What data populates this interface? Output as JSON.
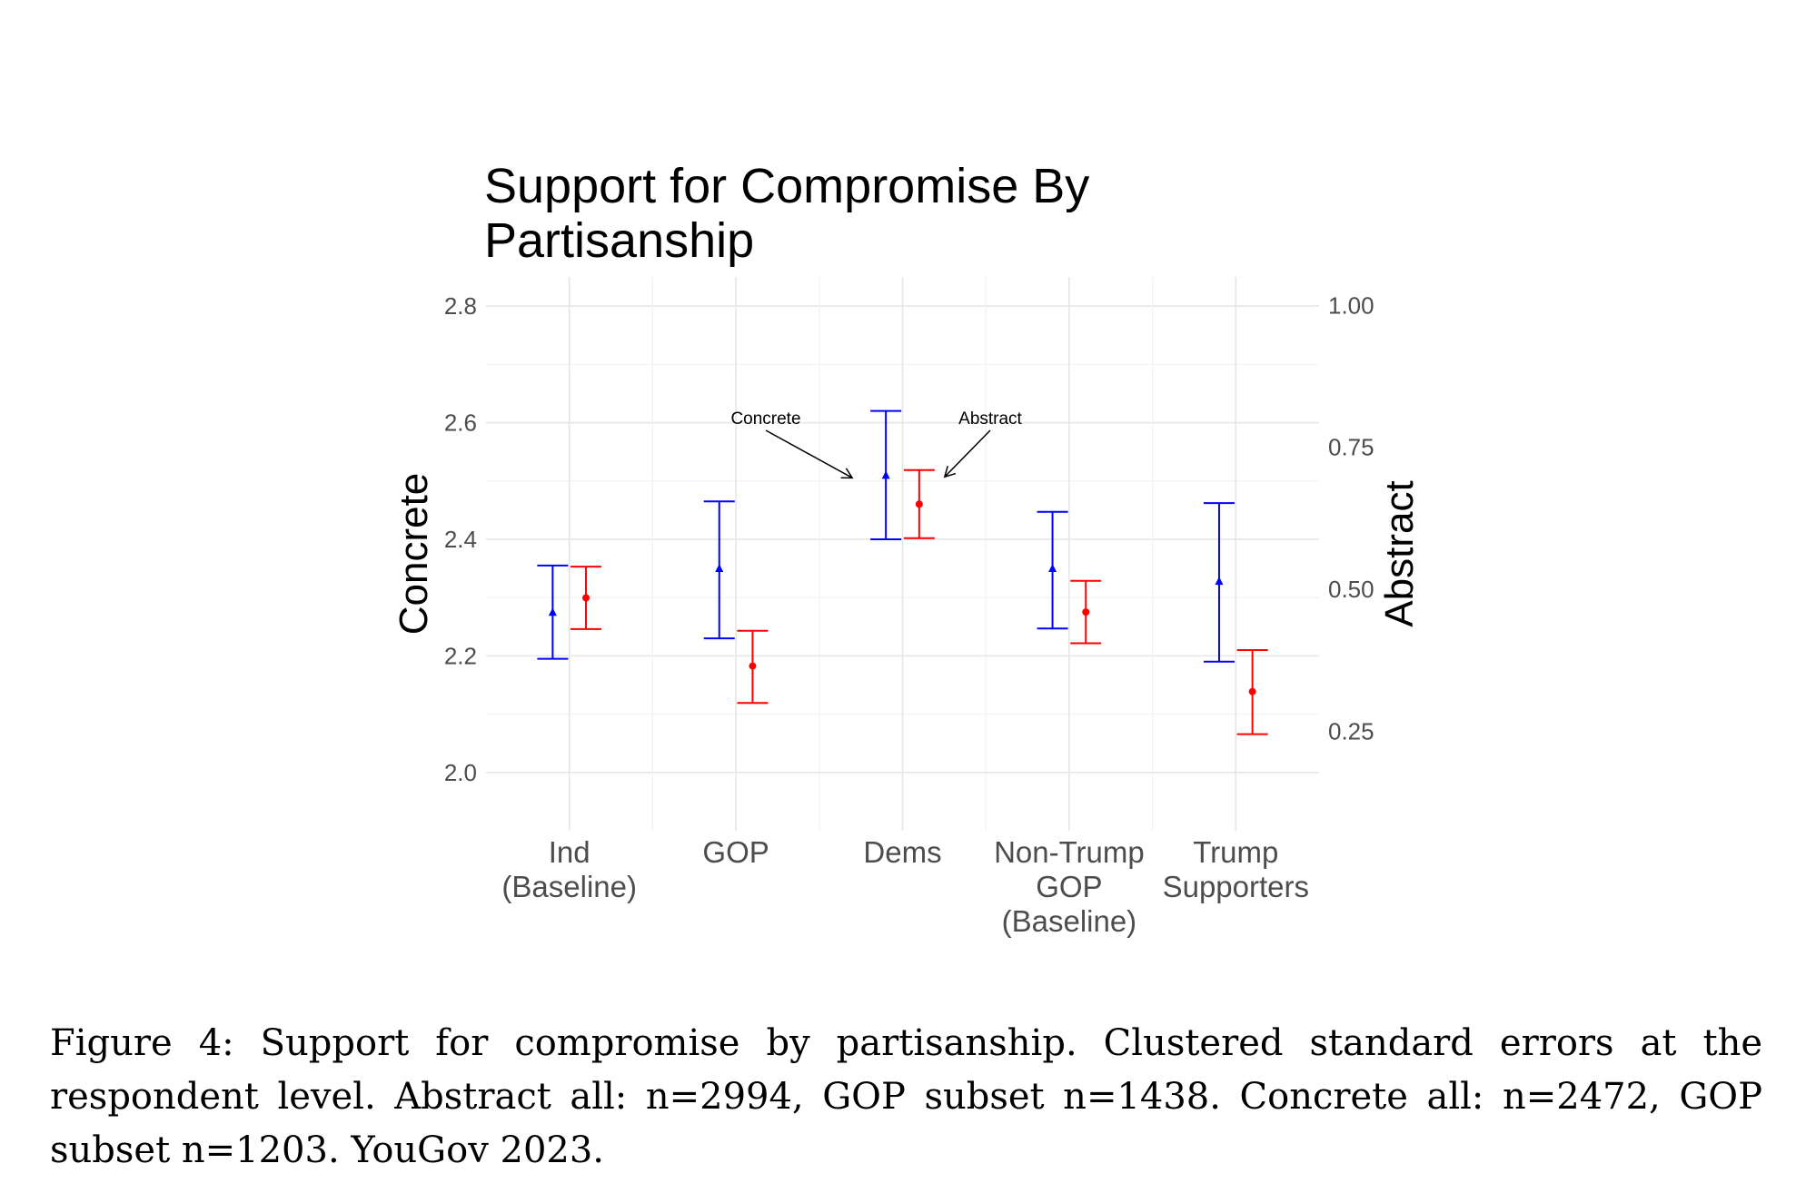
{
  "chart_data": {
    "type": "errorbar",
    "title": "Support for Compromise By Partisanship",
    "title_lines": [
      "Support for Compromise By",
      "Partisanship"
    ],
    "left_axis": {
      "label": "Concrete",
      "range": [
        1.9,
        2.85
      ],
      "ticks": [
        2.0,
        2.2,
        2.4,
        2.6,
        2.8
      ],
      "tick_labels": [
        "2.0",
        "2.2",
        "2.4",
        "2.6",
        "2.8"
      ]
    },
    "right_axis": {
      "label": "Abstract",
      "range": [
        0.075,
        1.05
      ],
      "ticks": [
        0.25,
        0.5,
        0.75,
        1.0
      ],
      "tick_labels": [
        "0.25",
        "0.50",
        "0.75",
        "1.00"
      ]
    },
    "categories": [
      [
        "Ind",
        "(Baseline)"
      ],
      [
        "GOP"
      ],
      [
        "Dems"
      ],
      [
        "Non-Trump",
        "GOP",
        "(Baseline)"
      ],
      [
        "Trump",
        "Supporters"
      ]
    ],
    "series": [
      {
        "name": "Concrete",
        "axis": "left",
        "color": "#0000ff",
        "marker": "triangle",
        "points": [
          {
            "mean": 2.275,
            "lower": 2.195,
            "upper": 2.355
          },
          {
            "mean": 2.35,
            "lower": 2.23,
            "upper": 2.465
          },
          {
            "mean": 2.51,
            "lower": 2.4,
            "upper": 2.62
          },
          {
            "mean": 2.35,
            "lower": 2.247,
            "upper": 2.447
          },
          {
            "mean": 2.328,
            "lower": 2.19,
            "upper": 2.462
          }
        ]
      },
      {
        "name": "Abstract",
        "axis": "right",
        "color": "#ff0000",
        "marker": "circle",
        "points": [
          {
            "mean": 0.485,
            "lower": 0.43,
            "upper": 0.54
          },
          {
            "mean": 0.365,
            "lower": 0.3,
            "upper": 0.427
          },
          {
            "mean": 0.65,
            "lower": 0.59,
            "upper": 0.71
          },
          {
            "mean": 0.46,
            "lower": 0.405,
            "upper": 0.515
          },
          {
            "mean": 0.32,
            "lower": 0.245,
            "upper": 0.393
          }
        ]
      }
    ],
    "annotations": [
      {
        "text": "Concrete",
        "points_to": "Dems Concrete"
      },
      {
        "text": "Abstract",
        "points_to": "Dems Abstract"
      }
    ]
  },
  "caption": "Figure 4: Support for compromise by partisanship. Clustered standard errors at the respondent level. Abstract all: n=2994, GOP subset n=1438. Concrete all: n=2472, GOP subset n=1203. YouGov 2023."
}
